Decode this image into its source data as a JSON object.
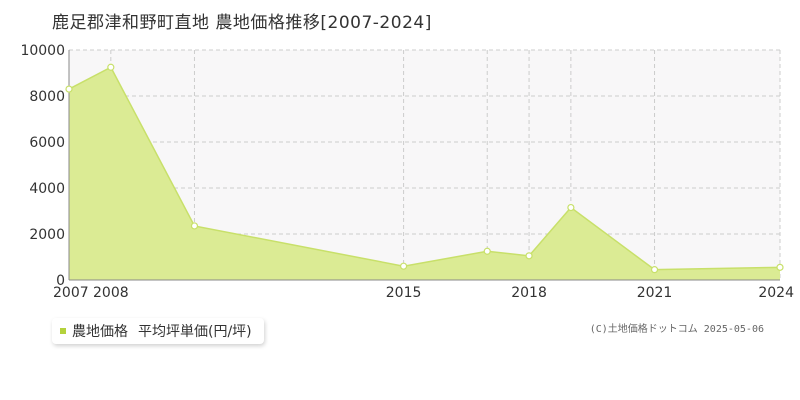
{
  "title": "鹿足郡津和野町直地 農地価格推移[2007-2024]",
  "legend": {
    "label": "農地価格",
    "unit_label": "平均坪単価(円/坪)"
  },
  "credit": "(C)土地価格ドットコム 2025-05-06",
  "colors": {
    "area_fill": "#dbeb94",
    "line": "#c8e06a",
    "point_fill": "#ffffff",
    "grid": "#cccccc",
    "plot_bg": "#f8f7f8",
    "axis": "#888888",
    "text": "#333333",
    "legend_swatch": "#b4d23c"
  },
  "chart_data": {
    "type": "area",
    "x": [
      2007,
      2008,
      2010,
      2015,
      2017,
      2018,
      2019,
      2021,
      2024
    ],
    "series": [
      {
        "values": [
          8300,
          9250,
          2350,
          600,
          1250,
          1050,
          3150,
          450,
          550
        ]
      }
    ],
    "xlim": [
      2007,
      2024
    ],
    "ylim": [
      0,
      10000
    ],
    "yticks": [
      0,
      2000,
      4000,
      6000,
      8000,
      10000
    ],
    "xtick_labels": [
      2007,
      2008,
      2015,
      2018,
      2021,
      2024
    ],
    "grid": true,
    "legend_position": "bottom-left"
  }
}
